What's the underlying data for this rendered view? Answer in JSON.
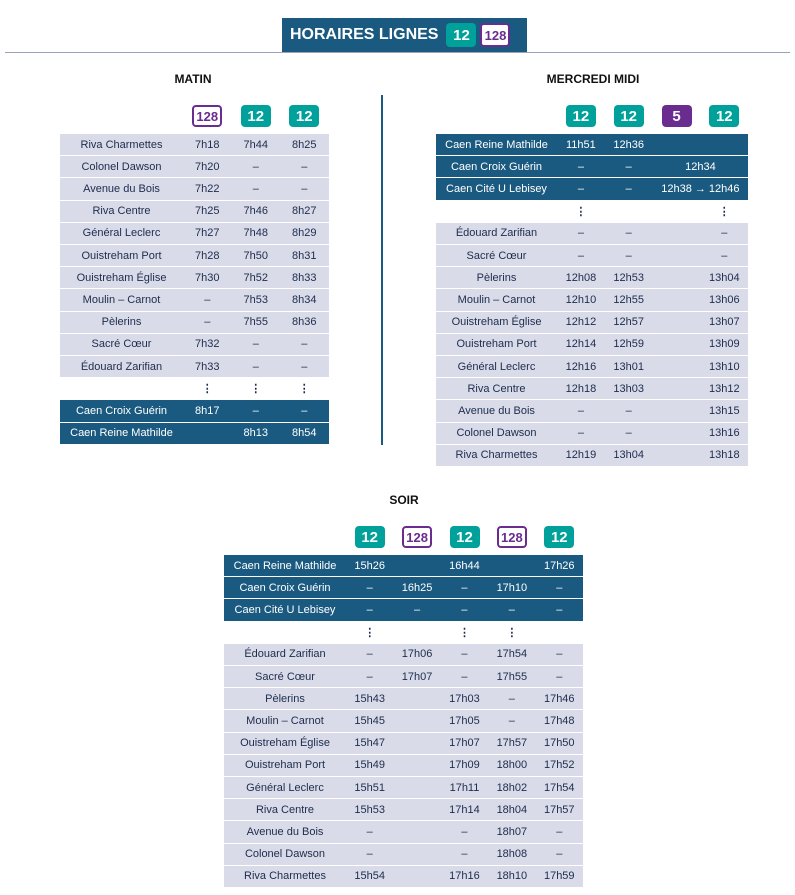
{
  "header": {
    "title": "HORAIRES LIGNES",
    "badges": [
      {
        "label": "12",
        "style": "filled",
        "color": "#00a19a"
      },
      {
        "label": "128",
        "style": "outline",
        "color": "#6a2c8e"
      }
    ]
  },
  "sections": [
    {
      "title": "MATIN",
      "badges": [
        {
          "label": "128",
          "style": "outline",
          "color": "#6a2c8e"
        },
        {
          "label": "12",
          "style": "filled",
          "color": "#00a19a"
        },
        {
          "label": "12",
          "style": "filled",
          "color": "#00a19a"
        }
      ],
      "rows": [
        {
          "name": "Riva Charmettes",
          "cells": [
            "7h18",
            "7h44",
            "8h25"
          ]
        },
        {
          "name": "Colonel Dawson",
          "cells": [
            "7h20",
            "–",
            "–"
          ]
        },
        {
          "name": "Avenue du Bois",
          "cells": [
            "7h22",
            "–",
            "–"
          ]
        },
        {
          "name": "Riva Centre",
          "cells": [
            "7h25",
            "7h46",
            "8h27"
          ]
        },
        {
          "name": "Général Leclerc",
          "cells": [
            "7h27",
            "7h48",
            "8h29"
          ]
        },
        {
          "name": "Ouistreham Port",
          "cells": [
            "7h28",
            "7h50",
            "8h31"
          ]
        },
        {
          "name": "Ouistreham Église",
          "cells": [
            "7h30",
            "7h52",
            "8h33"
          ]
        },
        {
          "name": "Moulin – Carnot",
          "cells": [
            "–",
            "7h53",
            "8h34"
          ]
        },
        {
          "name": "Pèlerins",
          "cells": [
            "–",
            "7h55",
            "8h36"
          ]
        },
        {
          "name": "Sacré Cœur",
          "cells": [
            "7h32",
            "–",
            "–"
          ]
        },
        {
          "name": "Édouard Zarifian",
          "cells": [
            "7h33",
            "–",
            "–"
          ]
        },
        {
          "name": null,
          "cells": [
            "⋮",
            "⋮",
            "⋮"
          ]
        },
        {
          "name": "Caen Croix Guérin",
          "dark": true,
          "cells": [
            "8h17",
            "–",
            "–"
          ]
        },
        {
          "name": "Caen Reine Mathilde",
          "dark": true,
          "cells": [
            null,
            "8h13",
            "8h54"
          ]
        }
      ]
    },
    {
      "title": "MERCREDI MIDI",
      "badges": [
        {
          "label": "12",
          "style": "filled",
          "color": "#00a19a"
        },
        {
          "label": "12",
          "style": "filled",
          "color": "#00a19a"
        },
        {
          "label": "5",
          "style": "filled",
          "color": "#6a2c8e"
        },
        {
          "label": "12",
          "style": "filled",
          "color": "#00a19a"
        }
      ],
      "rows": [
        {
          "name": "Caen Reine Mathilde",
          "dark": true,
          "cells": [
            "11h51",
            "12h36",
            null,
            null
          ]
        },
        {
          "name": "Caen Croix Guérin",
          "dark": true,
          "cells": [
            "–",
            "–",
            "12h34"
          ]
        },
        {
          "name": "Caen Cité U Lebisey",
          "dark": true,
          "cells": [
            "–",
            "–",
            "12h38 → 12h46"
          ]
        },
        {
          "name": null,
          "cells": [
            "⋮",
            null,
            null,
            "⋮"
          ]
        },
        {
          "name": "Édouard Zarifian",
          "cells": [
            "–",
            "–",
            null,
            "–"
          ]
        },
        {
          "name": "Sacré Cœur",
          "cells": [
            "–",
            "–",
            null,
            "–"
          ]
        },
        {
          "name": "Pèlerins",
          "cells": [
            "12h08",
            "12h53",
            null,
            "13h04"
          ]
        },
        {
          "name": "Moulin – Carnot",
          "cells": [
            "12h10",
            "12h55",
            null,
            "13h06"
          ]
        },
        {
          "name": "Ouistreham Église",
          "cells": [
            "12h12",
            "12h57",
            null,
            "13h07"
          ]
        },
        {
          "name": "Ouistreham Port",
          "cells": [
            "12h14",
            "12h59",
            null,
            "13h09"
          ]
        },
        {
          "name": "Général Leclerc",
          "cells": [
            "12h16",
            "13h01",
            null,
            "13h10"
          ]
        },
        {
          "name": "Riva Centre",
          "cells": [
            "12h18",
            "13h03",
            null,
            "13h12"
          ]
        },
        {
          "name": "Avenue du Bois",
          "cells": [
            "–",
            "–",
            null,
            "13h15"
          ]
        },
        {
          "name": "Colonel Dawson",
          "cells": [
            "–",
            "–",
            null,
            "13h16"
          ]
        },
        {
          "name": "Riva Charmettes",
          "cells": [
            "12h19",
            "13h04",
            null,
            "13h18"
          ]
        }
      ]
    },
    {
      "title": "SOIR",
      "badges": [
        {
          "label": "12",
          "style": "filled",
          "color": "#00a19a"
        },
        {
          "label": "128",
          "style": "outline",
          "color": "#6a2c8e"
        },
        {
          "label": "12",
          "style": "filled",
          "color": "#00a19a"
        },
        {
          "label": "128",
          "style": "outline",
          "color": "#6a2c8e"
        },
        {
          "label": "12",
          "style": "filled",
          "color": "#00a19a"
        }
      ],
      "rows": [
        {
          "name": "Caen Reine Mathilde",
          "dark": true,
          "cells": [
            "15h26",
            null,
            "16h44",
            null,
            "17h26"
          ]
        },
        {
          "name": "Caen Croix Guérin",
          "dark": true,
          "cells": [
            "–",
            "16h25",
            "–",
            "17h10",
            "–"
          ]
        },
        {
          "name": "Caen Cité U Lebisey",
          "dark": true,
          "cells": [
            "–",
            "–",
            "–",
            "–",
            "–"
          ]
        },
        {
          "name": null,
          "cells": [
            "⋮",
            null,
            "⋮",
            "⋮",
            null
          ]
        },
        {
          "name": "Édouard Zarifian",
          "cells": [
            "–",
            "17h06",
            "–",
            "17h54",
            "–"
          ]
        },
        {
          "name": "Sacré Cœur",
          "cells": [
            "–",
            "17h07",
            "–",
            "17h55",
            "–"
          ]
        },
        {
          "name": "Pèlerins",
          "cells": [
            "15h43",
            null,
            "17h03",
            "–",
            "17h46"
          ]
        },
        {
          "name": "Moulin – Carnot",
          "cells": [
            "15h45",
            null,
            "17h05",
            "–",
            "17h48"
          ]
        },
        {
          "name": "Ouistreham Église",
          "cells": [
            "15h47",
            null,
            "17h07",
            "17h57",
            "17h50"
          ]
        },
        {
          "name": "Ouistreham Port",
          "cells": [
            "15h49",
            null,
            "17h09",
            "18h00",
            "17h52"
          ]
        },
        {
          "name": "Général Leclerc",
          "cells": [
            "15h51",
            null,
            "17h11",
            "18h02",
            "17h54"
          ]
        },
        {
          "name": "Riva Centre",
          "cells": [
            "15h53",
            null,
            "17h14",
            "18h04",
            "17h57"
          ]
        },
        {
          "name": "Avenue du Bois",
          "cells": [
            "–",
            null,
            "–",
            "18h07",
            "–"
          ]
        },
        {
          "name": "Colonel Dawson",
          "cells": [
            "–",
            null,
            "–",
            "18h08",
            "–"
          ]
        },
        {
          "name": "Riva Charmettes",
          "cells": [
            "15h54",
            null,
            "17h16",
            "18h10",
            "17h59"
          ]
        }
      ]
    }
  ]
}
